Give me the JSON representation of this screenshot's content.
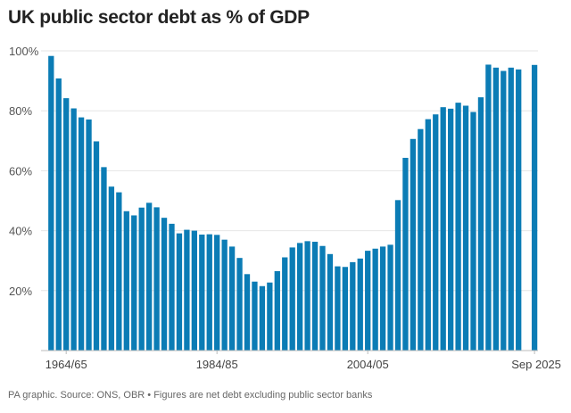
{
  "title": "UK public sector debt as % of GDP",
  "footer": "PA graphic. Source: ONS, OBR • Figures are net debt excluding public sector banks",
  "chart_data": {
    "type": "bar",
    "title": "UK public sector debt as % of GDP",
    "xlabel": "",
    "ylabel": "",
    "ylim": [
      0,
      100
    ],
    "grid": true,
    "bar_color": "#0b7cb5",
    "y_ticks": [
      20,
      40,
      60,
      80,
      100
    ],
    "y_tick_labels": [
      "20%",
      "40%",
      "60%",
      "80%",
      "100%"
    ],
    "x_tick_labels": [
      "1964/65",
      "1984/85",
      "2004/05",
      "Sep 2025"
    ],
    "categories": [
      "1962/63",
      "1963/64",
      "1964/65",
      "1965/66",
      "1966/67",
      "1967/68",
      "1968/69",
      "1969/70",
      "1970/71",
      "1971/72",
      "1972/73",
      "1973/74",
      "1974/75",
      "1975/76",
      "1976/77",
      "1977/78",
      "1978/79",
      "1979/80",
      "1980/81",
      "1981/82",
      "1982/83",
      "1983/84",
      "1984/85",
      "1985/86",
      "1986/87",
      "1987/88",
      "1988/89",
      "1989/90",
      "1990/91",
      "1991/92",
      "1992/93",
      "1993/94",
      "1994/95",
      "1995/96",
      "1996/97",
      "1997/98",
      "1998/99",
      "1999/00",
      "2000/01",
      "2001/02",
      "2002/03",
      "2003/04",
      "2004/05",
      "2005/06",
      "2006/07",
      "2007/08",
      "2008/09",
      "2009/10",
      "2010/11",
      "2011/12",
      "2012/13",
      "2013/14",
      "2014/15",
      "2015/16",
      "2016/17",
      "2017/18",
      "2018/19",
      "2019/20",
      "2020/21",
      "2021/22",
      "2022/23",
      "2023/24",
      "2024/25",
      "Sep 2025"
    ],
    "values": [
      98.3,
      90.8,
      84.2,
      80.8,
      77.8,
      77.1,
      69.8,
      61.2,
      54.7,
      52.8,
      46.5,
      45.1,
      47.7,
      49.3,
      47.8,
      44.3,
      42.3,
      39.1,
      40.3,
      40.0,
      38.7,
      38.8,
      38.6,
      37.0,
      34.7,
      30.9,
      25.5,
      23.0,
      21.5,
      22.7,
      26.5,
      31.1,
      34.4,
      35.9,
      36.5,
      36.3,
      34.9,
      32.2,
      28.1,
      27.9,
      29.5,
      30.7,
      33.3,
      34.0,
      34.7,
      35.3,
      50.2,
      64.3,
      70.6,
      73.9,
      77.2,
      78.8,
      81.2,
      80.7,
      82.7,
      81.7,
      79.6,
      84.5,
      95.4,
      94.4,
      93.3,
      94.4,
      93.8,
      95.3
    ]
  }
}
